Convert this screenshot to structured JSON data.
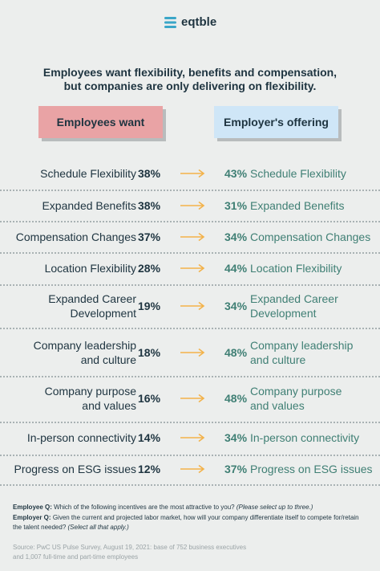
{
  "header": {
    "logo": "eqtble",
    "headline": [
      "Employees want flexibility, benefits and compensation,",
      "but companies are only delivering on flexibility."
    ]
  },
  "columns": {
    "left": "Employees want",
    "right": "Employer's offering"
  },
  "rows": [
    {
      "want_label": [
        "Schedule Flexibility"
      ],
      "want_pct": "38%",
      "offer_pct": "43%",
      "offer_label": [
        "Schedule Flexibility"
      ]
    },
    {
      "want_label": [
        "Expanded Benefits"
      ],
      "want_pct": "38%",
      "offer_pct": "31%",
      "offer_label": [
        "Expanded Benefits"
      ]
    },
    {
      "want_label": [
        "Compensation Changes"
      ],
      "want_pct": "37%",
      "offer_pct": "34%",
      "offer_label": [
        "Compensation Changes"
      ]
    },
    {
      "want_label": [
        "Location Flexibility"
      ],
      "want_pct": "28%",
      "offer_pct": "44%",
      "offer_label": [
        "Location Flexibility"
      ]
    },
    {
      "want_label": [
        "Expanded Career",
        "Development"
      ],
      "want_pct": "19%",
      "offer_pct": "34%",
      "offer_label": [
        "Expanded Career",
        "Development"
      ]
    },
    {
      "want_label": [
        "Company leadership",
        "and culture"
      ],
      "want_pct": "18%",
      "offer_pct": "48%",
      "offer_label": [
        "Company leadership",
        "and culture"
      ]
    },
    {
      "want_label": [
        "Company purpose",
        "and values"
      ],
      "want_pct": "16%",
      "offer_pct": "48%",
      "offer_label": [
        "Company purpose",
        "and values"
      ]
    },
    {
      "want_label": [
        "In-person connectivity"
      ],
      "want_pct": "14%",
      "offer_pct": "34%",
      "offer_label": [
        "In-person connectivity"
      ]
    },
    {
      "want_label": [
        "Progress on ESG issues"
      ],
      "want_pct": "12%",
      "offer_pct": "37%",
      "offer_label": [
        "Progress on ESG issues"
      ]
    }
  ],
  "footer": {
    "employee_q": {
      "label": "Employee Q:",
      "text": "Which of the following incentives are the most attractive to you?",
      "note": "(Please select up to three.)"
    },
    "employer_q": {
      "label": "Employer Q:",
      "text": "Given the current and projected labor market, how will your company differentiate itself to compete for/retain the talent needed?",
      "note": "(Select all that apply.)"
    },
    "source": "Source: PwC US Pulse Survey, August 19, 2021: base of 752 business executives and 1,007 full-time and part-time employees"
  }
}
